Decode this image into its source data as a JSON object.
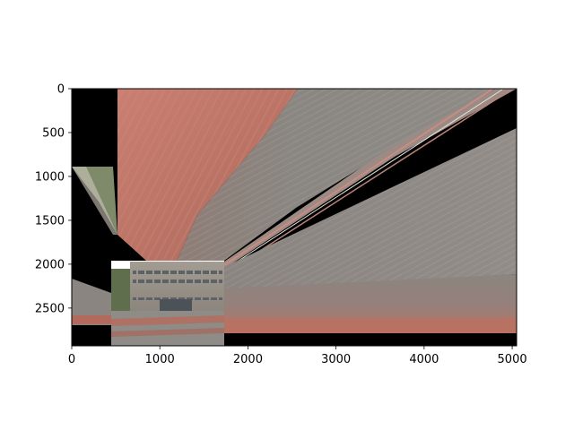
{
  "figure": {
    "x_ticks": [
      0,
      1000,
      2000,
      3000,
      4000,
      5000
    ],
    "y_ticks": [
      0,
      500,
      1000,
      1500,
      2000,
      2500
    ],
    "x_range": [
      0,
      5050
    ],
    "y_range": [
      2930,
      0
    ],
    "y_inverted": true
  },
  "image_content": {
    "subject": "warped-panorama-building",
    "colors": {
      "background": "#000000",
      "salmon": "#c0786a",
      "gray": "#8d8884",
      "building_facade": "#9b958c",
      "sky": "#ffffff"
    }
  }
}
